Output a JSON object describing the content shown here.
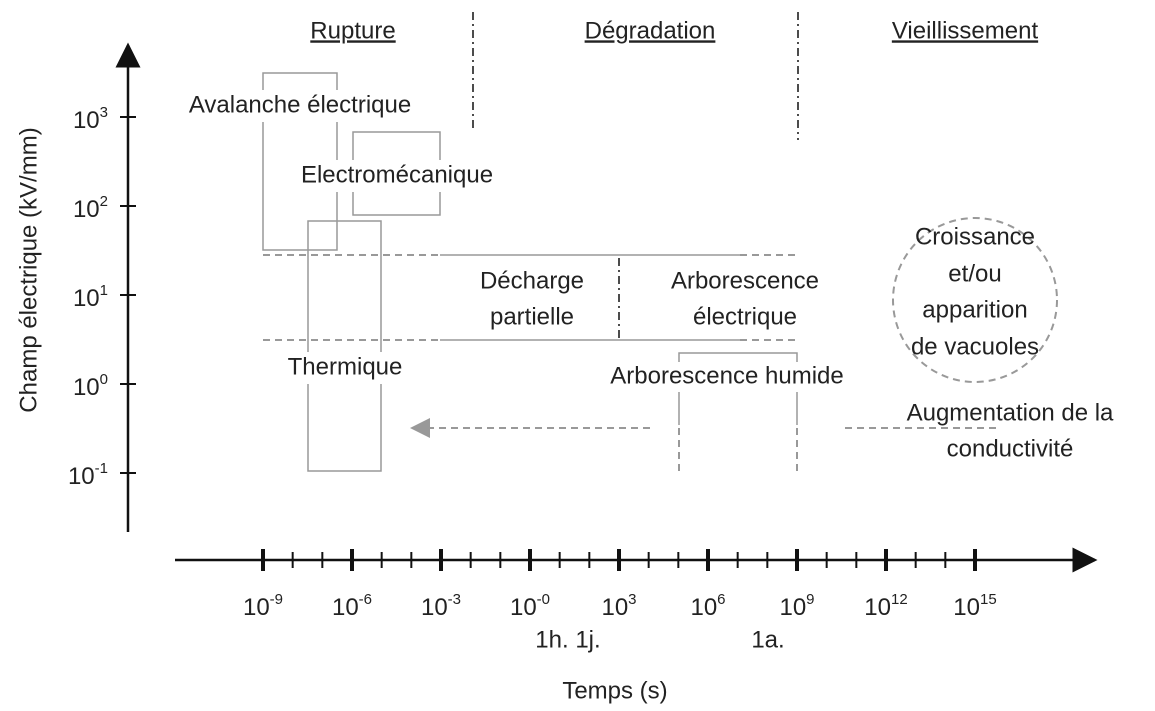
{
  "header": {
    "sections": [
      "Rupture",
      "Dégradation",
      "Vieillissement"
    ]
  },
  "axes": {
    "y_label": "Champ électrique (kV/mm)",
    "x_label": "Temps (s)",
    "y_ticks": [
      {
        "base": "10",
        "exp": "3"
      },
      {
        "base": "10",
        "exp": "2"
      },
      {
        "base": "10",
        "exp": "1"
      },
      {
        "base": "10",
        "exp": "0"
      },
      {
        "base": "10",
        "exp": "-1"
      }
    ],
    "x_ticks": [
      {
        "base": "10",
        "exp": "-9"
      },
      {
        "base": "10",
        "exp": "-6"
      },
      {
        "base": "10",
        "exp": "-3"
      },
      {
        "base": "10",
        "exp": "-0"
      },
      {
        "base": "10",
        "exp": "3"
      },
      {
        "base": "10",
        "exp": "6"
      },
      {
        "base": "10",
        "exp": "9"
      },
      {
        "base": "10",
        "exp": "12"
      },
      {
        "base": "10",
        "exp": "15"
      }
    ],
    "time_marks": [
      "1h. 1j.",
      "1a."
    ]
  },
  "regions": {
    "avalanche": "Avalanche électrique",
    "electromecanique": "Electromécanique",
    "thermique": "Thermique",
    "decharge": [
      "Décharge",
      "partielle"
    ],
    "arborescence": [
      "Arborescence",
      "électrique"
    ],
    "croissance": [
      "Croissance",
      "et/ou",
      "apparition",
      "de vacuoles"
    ],
    "humide": "Arborescence humide",
    "conductivite": [
      "Augmentation de la",
      "conductivité"
    ]
  }
}
